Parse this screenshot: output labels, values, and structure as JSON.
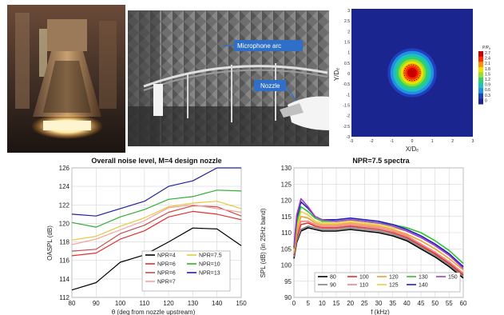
{
  "photos": {
    "lab_callouts": [
      "Microphone arc",
      "Nozzle"
    ]
  },
  "contour": {
    "xlabel": "X/Dₑ",
    "ylabel": "Y/Dₑ",
    "x_ticks": [
      "-3",
      "-2",
      "-1",
      "0",
      "1",
      "2",
      "3"
    ],
    "y_ticks": [
      "3",
      "2.5",
      "2",
      "1.5",
      "1",
      "0.5",
      "0",
      "-0.5",
      "-1",
      "-1.5",
      "-2",
      "-2.5",
      "-3"
    ],
    "colorbar_label": "P/Pₐ",
    "colorbar_ticks": [
      "2.7",
      "2.4",
      "2.1",
      "1.8",
      "1.5",
      "1.2",
      "0.9",
      "0.6",
      "0.3",
      "0"
    ],
    "colors": [
      "#c80000",
      "#ff2a00",
      "#ff9000",
      "#f0e000",
      "#90e030",
      "#30d070",
      "#20c0c0",
      "#2090e0",
      "#2040c0",
      "#1a2590"
    ]
  },
  "chart_data": [
    {
      "type": "line",
      "title": "Overall noise level, M=4 design nozzle",
      "xlabel": "θ (deg from nozzle upstream)",
      "ylabel": "OASPL (dB)",
      "xlim": [
        80,
        150
      ],
      "ylim": [
        112,
        126
      ],
      "x": [
        80,
        90,
        100,
        110,
        120,
        130,
        140,
        150
      ],
      "x_ticks": [
        "80",
        "90",
        "100",
        "110",
        "120",
        "130",
        "140",
        "150"
      ],
      "y_ticks": [
        "112",
        "114",
        "116",
        "118",
        "120",
        "122",
        "124",
        "126"
      ],
      "legend_placement": "bottom-center",
      "series": [
        {
          "name": "NPR=4",
          "color": "#000000",
          "values": [
            112.8,
            113.6,
            115.8,
            116.6,
            118.0,
            119.5,
            119.4,
            117.6
          ]
        },
        {
          "name": "NPR=6",
          "color": "#e03030",
          "values": [
            116.5,
            116.8,
            118.3,
            119.2,
            120.7,
            121.3,
            121.0,
            120.4
          ]
        },
        {
          "name": "NPR=6",
          "color": "#c0504d",
          "values": [
            117.0,
            117.2,
            118.9,
            119.8,
            121.2,
            121.9,
            121.8,
            120.8
          ]
        },
        {
          "name": "NPR=7",
          "color": "#f4a0a0",
          "values": [
            117.7,
            118.3,
            119.3,
            120.3,
            121.7,
            122.0,
            121.6,
            121.2
          ]
        },
        {
          "name": "NPR=7.5",
          "color": "#e8c840",
          "values": [
            118.2,
            118.6,
            119.7,
            120.6,
            121.8,
            122.2,
            122.4,
            121.6
          ]
        },
        {
          "name": "NPR=10",
          "color": "#30b030",
          "values": [
            120.1,
            119.6,
            120.7,
            121.5,
            122.6,
            122.9,
            123.6,
            123.5
          ]
        },
        {
          "name": "NPR=13",
          "color": "#2020a0",
          "values": [
            121.0,
            120.8,
            121.6,
            122.4,
            124.0,
            124.6,
            126.0,
            126.0
          ]
        }
      ]
    },
    {
      "type": "line",
      "title": "NPR=7.5 spectra",
      "xlabel": "f (kHz)",
      "ylabel": "SPL (dB) (in 25Hz band)",
      "xlim": [
        0,
        60
      ],
      "ylim": [
        90,
        130
      ],
      "x": [
        0,
        1,
        2.5,
        5,
        7.5,
        10,
        15,
        20,
        25,
        30,
        35,
        40,
        45,
        50,
        55,
        60
      ],
      "x_ticks": [
        "0",
        "5",
        "10",
        "15",
        "20",
        "25",
        "30",
        "35",
        "40",
        "45",
        "50",
        "55",
        "60"
      ],
      "y_ticks": [
        "90",
        "95",
        "100",
        "105",
        "110",
        "115",
        "120",
        "125",
        "130"
      ],
      "legend_placement": "bottom",
      "series": [
        {
          "name": "80",
          "color": "#000000",
          "values": [
            102,
            107,
            110.5,
            111.5,
            111,
            110.5,
            110.5,
            111,
            110.5,
            110,
            109,
            107.5,
            105,
            102.5,
            99.5,
            96
          ]
        },
        {
          "name": "90",
          "color": "#808080",
          "values": [
            102.5,
            107.5,
            111,
            112,
            111.5,
            111,
            111,
            111.5,
            111,
            110.5,
            109.5,
            108,
            105.5,
            103,
            100,
            96.5
          ]
        },
        {
          "name": "100",
          "color": "#e03030",
          "values": [
            103,
            108.5,
            112.5,
            113,
            112,
            111.5,
            111.5,
            112,
            111.5,
            111,
            110,
            108.5,
            106,
            103.5,
            100.5,
            97
          ]
        },
        {
          "name": "110",
          "color": "#f08080",
          "values": [
            103.5,
            109.5,
            113.5,
            113.5,
            112.5,
            112,
            112,
            112.5,
            112,
            111.5,
            110.5,
            109,
            106.5,
            104,
            101,
            97.5
          ]
        },
        {
          "name": "120",
          "color": "#f0a030",
          "values": [
            104,
            110.5,
            115,
            114.5,
            113,
            112.5,
            112.5,
            113,
            112.5,
            112,
            111,
            109.5,
            107.5,
            105,
            102,
            98.5
          ]
        },
        {
          "name": "125",
          "color": "#e8d040",
          "values": [
            104.5,
            111.5,
            116.5,
            115.5,
            113.5,
            113,
            113,
            113.5,
            113,
            112.5,
            111.5,
            110.5,
            108.5,
            106,
            103,
            99.5
          ]
        },
        {
          "name": "130",
          "color": "#30c030",
          "values": [
            105,
            113,
            118,
            116.5,
            114.5,
            113.5,
            113.5,
            114,
            113.5,
            113,
            112.5,
            111.5,
            110,
            107.5,
            104.5,
            100.5
          ]
        },
        {
          "name": "140",
          "color": "#2020c0",
          "values": [
            105.5,
            114.5,
            119.5,
            117.5,
            115,
            114,
            114,
            114.5,
            114,
            113.5,
            112.5,
            111,
            109,
            106.5,
            103.5,
            99.5
          ]
        },
        {
          "name": "150",
          "color": "#a040c0",
          "values": [
            105.5,
            115.5,
            120.5,
            118,
            115,
            114,
            113.5,
            114,
            113.5,
            113,
            112,
            110.5,
            108.5,
            106,
            103,
            99
          ]
        }
      ]
    }
  ]
}
